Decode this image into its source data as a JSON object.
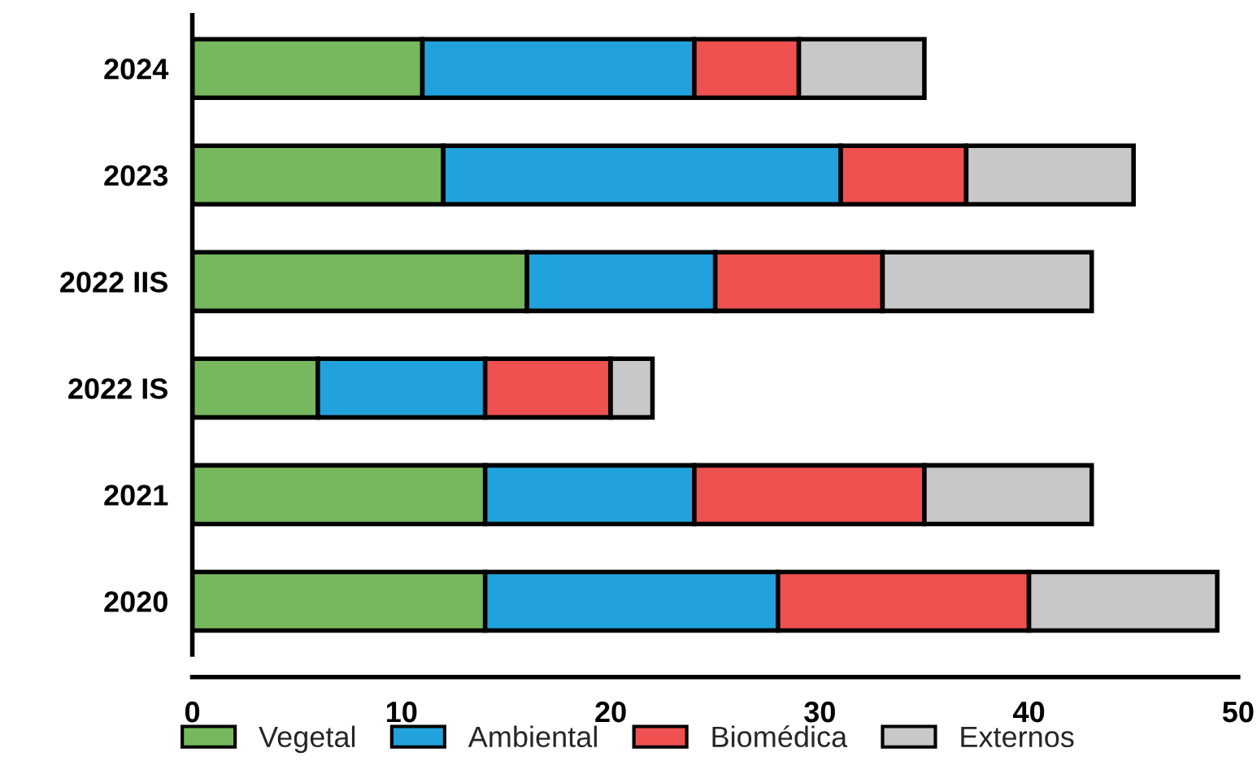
{
  "chart_data": {
    "type": "bar",
    "orientation": "horizontal",
    "stacked": true,
    "categories": [
      "2024",
      "2023",
      "2022 IIS",
      "2022 IS",
      "2021",
      "2020"
    ],
    "series": [
      {
        "name": "Vegetal",
        "color": "#77b85e",
        "values": [
          11,
          12,
          16,
          6,
          14,
          14
        ]
      },
      {
        "name": "Ambiental",
        "color": "#22a2dd",
        "values": [
          13,
          19,
          9,
          8,
          10,
          14
        ]
      },
      {
        "name": "Biomédica",
        "color": "#ef5050",
        "values": [
          5,
          6,
          8,
          6,
          11,
          12
        ]
      },
      {
        "name": "Externos",
        "color": "#c8c8c8",
        "values": [
          6,
          8,
          10,
          2,
          8,
          9
        ]
      }
    ],
    "xlim": [
      0,
      50
    ],
    "xticks": [
      0,
      10,
      20,
      30,
      40,
      50
    ],
    "grid": false,
    "legend": "bottom"
  }
}
